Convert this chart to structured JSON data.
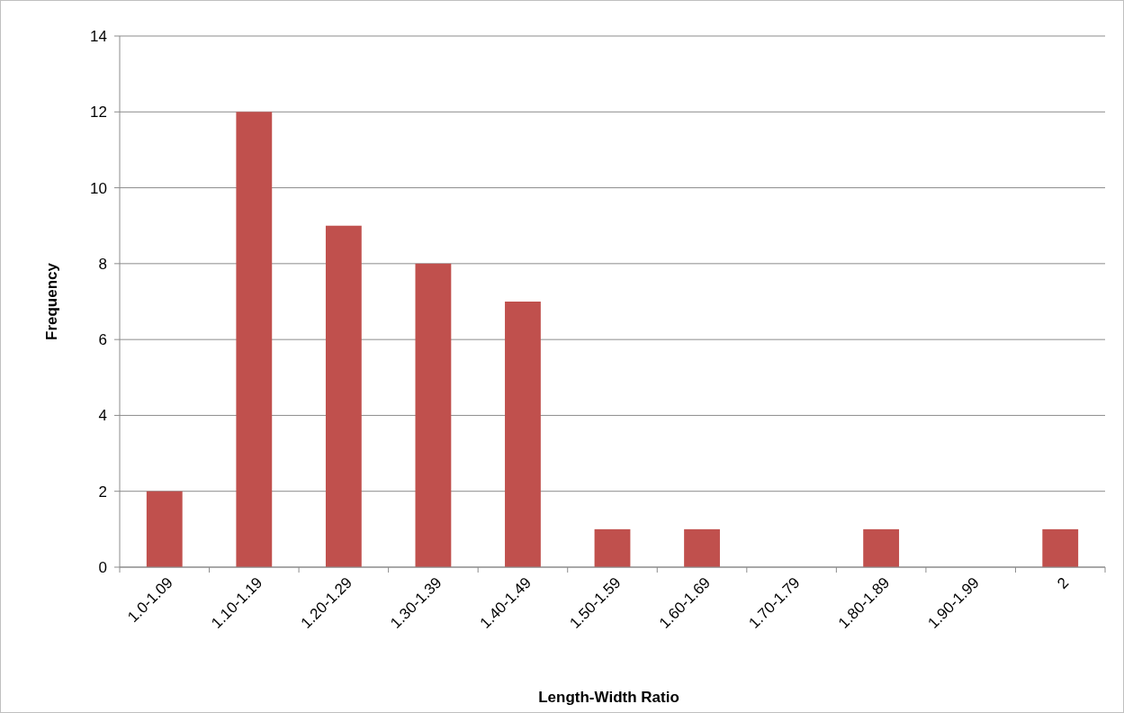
{
  "chart_data": {
    "type": "bar",
    "xlabel": "Length-Width Ratio",
    "ylabel": "Frequency",
    "categories": [
      "1.0-1.09",
      "1.10-1.19",
      "1.20-1.29",
      "1.30-1.39",
      "1.40-1.49",
      "1.50-1.59",
      "1.60-1.69",
      "1.70-1.79",
      "1.80-1.89",
      "1.90-1.99",
      "2"
    ],
    "values": [
      2,
      12,
      9,
      8,
      7,
      1,
      1,
      0,
      1,
      0,
      1
    ],
    "color": "#c0504d",
    "ylim": [
      0,
      14
    ],
    "yticks": [
      0,
      2,
      4,
      6,
      8,
      10,
      12,
      14
    ],
    "grid": "y"
  }
}
